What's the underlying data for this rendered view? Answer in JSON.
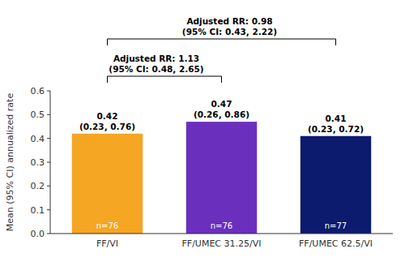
{
  "chart_data": {
    "type": "bar",
    "ylabel": "Mean (95% CI) annualized rate",
    "categories": [
      "FF/VI",
      "FF/UMEC 31.25/VI",
      "FF/UMEC 62.5/VI"
    ],
    "values": [
      0.42,
      0.47,
      0.41
    ],
    "value_labels": [
      "0.42\n(0.23, 0.76)",
      "0.47\n(0.26, 0.86)",
      "0.41\n(0.23, 0.72)"
    ],
    "data_labels": true,
    "n_labels": [
      "n=76",
      "n=76",
      "n=77"
    ],
    "colors": [
      "#F5A623",
      "#6B2FBE",
      "#0D1B6E"
    ],
    "ylim": [
      0,
      0.6
    ],
    "yticks": [
      {
        "value": 0.0,
        "label": "0.0"
      },
      0.1,
      0.2,
      0.3,
      0.4,
      0.5,
      0.6
    ],
    "grid": false,
    "annotations": [
      {
        "text": "Adjusted RR: 1.13\n(95% CI: 0.48, 2.65)",
        "between": [
          "FF/VI",
          "FF/UMEC 31.25/VI"
        ]
      },
      {
        "text": "Adjusted RR: 0.98\n(95% CI: 0.43, 2.22)",
        "between": [
          "FF/VI",
          "FF/UMEC 62.5/VI"
        ]
      }
    ]
  }
}
